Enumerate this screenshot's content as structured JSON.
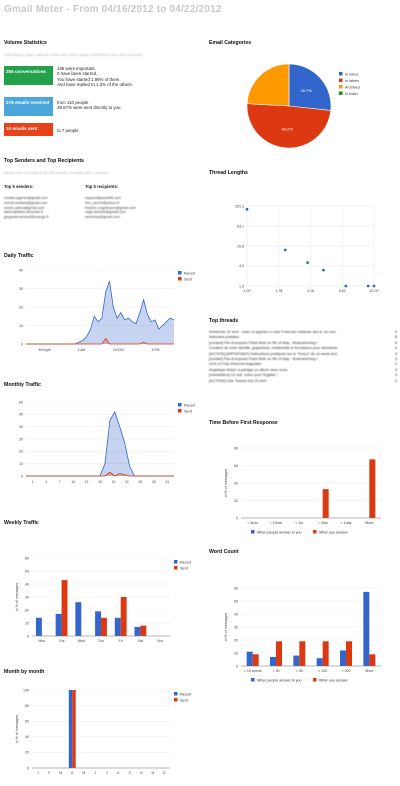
{
  "page_title": "Gmail Meter - From 04/16/2012 to 04/22/2012",
  "volume": {
    "heading": "Volume Statistics",
    "note": "Chat history, spam, calendar invites and other Google notifications have been removed",
    "boxes": [
      {
        "label": "255 conversations",
        "color": "#23a04a",
        "lines": [
          "195 were important.",
          "0 have been starred.",
          "You have started 1.96% of them.",
          "And have replied to 1.2% of the others."
        ]
      },
      {
        "label": "278 emails received",
        "color": "#4aa7dc",
        "lines": [
          "from 110 people",
          "39.57% were sent directly to you."
        ]
      },
      {
        "label": "10 emails sent",
        "color": "#e8421b",
        "lines": [
          "to 7 people"
        ]
      }
    ]
  },
  "senders": {
    "heading": "Top Senders and Top Recipients",
    "note": "Mouse over a contact to see the number of emails sent / received",
    "senders_title": "Top 5 senders:",
    "recipients_title": "Top 5 recipients:",
    "senders_list": [
      "romain.pigenel@gmail.com",
      "mehdi.meliank@gmail.com",
      "elodie.cabrol@gmail.com",
      "lisbon@listes.lemonde.fr",
      "gregoiremarnivel@orange.fr"
    ],
    "recipients_list": [
      "support@pearltrill.com",
      "ben_pecrin@yahoo.fr",
      "frederic.engelmann@gmail.com",
      "regis.laroche@gmail.com",
      "androsse@gmail.com"
    ]
  },
  "categories": {
    "heading": "Email Categories",
    "legend": [
      "In inbox",
      "In labels",
      "Archived",
      "In trash"
    ]
  },
  "thread_lengths": {
    "heading": "Thread Lengths"
  },
  "top_threads": {
    "heading": "Top threads",
    "rows": [
      {
        "subject": "Dimanche 22 avril : votez et appelez a voter Francois Hollande des le 1er tour",
        "count": "9"
      },
      {
        "subject": "Adresses postales",
        "count": "6"
      },
      {
        "subject": "[contact] Pan-European Flash Mob on 9th of May - Brainstorming !",
        "count": "6"
      },
      {
        "subject": "Creation de votre identite, graphisme, multimedia et formations pour debutants",
        "count": "4"
      },
      {
        "subject": "[ACTION] [IMPORTANT] Instructions juridiques sur le \"fresco\" de ce week-end",
        "count": "3"
      },
      {
        "subject": "[contact] Pan-European Flash Mob on 9th of May - Brainstorming !",
        "count": "3"
      },
      {
        "subject": "UVS v2 Fast Ethernet Adaptater",
        "count": "3"
      },
      {
        "subject": "Angelique Meyer a partage un album avec vous.",
        "count": "3"
      },
      {
        "subject": "[newsletters] Ce soir, votez pour l'Egalite !",
        "count": "3"
      },
      {
        "subject": "[ACTION] Liste Tweets dus 20 avril",
        "count": "3"
      }
    ]
  },
  "chart_data": [
    {
      "type": "pie",
      "title": "Email Categories",
      "categories": [
        "In inbox",
        "In labels",
        "Archived",
        "In trash"
      ],
      "values": [
        26.7,
        49.2,
        24.1,
        0
      ],
      "colors": [
        "#3366cc",
        "#dc3912",
        "#ff9900",
        "#109618"
      ],
      "slice_labels": [
        "26.7%",
        "49.2%",
        "",
        ""
      ]
    },
    {
      "type": "scatter",
      "title": "Thread Lengths",
      "x_ticks": [
        "1.00",
        "1.78",
        "3.16",
        "5.62",
        "10.00"
      ],
      "y_ticks": [
        "1.0",
        "4.0",
        "15.8",
        "63.1",
        "251.2"
      ],
      "log_scale": true,
      "points": [
        [
          1,
          200
        ],
        [
          2,
          12
        ],
        [
          3,
          5
        ],
        [
          4,
          3
        ],
        [
          6,
          1
        ],
        [
          9,
          1
        ],
        [
          10,
          1
        ]
      ]
    },
    {
      "type": "area",
      "title": "Daily Traffic",
      "y_ticks": [
        "0",
        "10",
        "20",
        "30",
        "40"
      ],
      "x_labels": [
        "4h/night",
        "4 AM",
        "NOON",
        "4 PM"
      ],
      "series": [
        {
          "name": "Recvd",
          "color": "#3366cc",
          "values": [
            0,
            0,
            0,
            0,
            0,
            0,
            0,
            0,
            0,
            0,
            0,
            0,
            0,
            0,
            1,
            2,
            4,
            8,
            15,
            12,
            14,
            28,
            34,
            20,
            14,
            17,
            13,
            14,
            12,
            11,
            17,
            24,
            16,
            12,
            13,
            8,
            10,
            12,
            14,
            13
          ]
        },
        {
          "name": "Sent",
          "color": "#dc3912",
          "values": [
            0,
            0,
            0,
            0,
            0,
            0,
            0,
            0,
            0,
            0,
            0,
            0,
            0,
            0,
            0,
            0,
            0,
            0,
            0,
            0,
            0,
            3,
            0,
            0,
            0,
            0,
            0,
            0,
            0,
            0,
            0,
            1,
            0,
            0,
            0,
            0,
            0,
            0,
            0,
            0
          ]
        }
      ]
    },
    {
      "type": "area",
      "title": "Monthly Traffic",
      "y_ticks": [
        "0",
        "10",
        "20",
        "30",
        "40",
        "50",
        "60"
      ],
      "x_labels": [
        "1",
        "4",
        "7",
        "10",
        "13",
        "16",
        "19",
        "22",
        "25",
        "28",
        "31"
      ],
      "series": [
        {
          "name": "Recvd",
          "color": "#3366cc",
          "values": [
            0,
            0,
            0,
            0,
            0,
            0,
            0,
            0,
            0,
            0,
            0,
            0,
            0,
            0,
            0,
            0,
            10,
            45,
            52,
            40,
            27,
            8,
            0,
            0,
            0,
            0,
            0,
            0,
            0,
            0,
            0
          ]
        },
        {
          "name": "Sent",
          "color": "#dc3912",
          "values": [
            0,
            0,
            0,
            0,
            0,
            0,
            0,
            0,
            0,
            0,
            0,
            0,
            0,
            0,
            0,
            0,
            0,
            3,
            0,
            2,
            1,
            0,
            0,
            0,
            0,
            0,
            0,
            0,
            0,
            0,
            0
          ]
        }
      ]
    },
    {
      "type": "bar",
      "title": "Weekly Traffic",
      "ylabel": "in % of messages",
      "y_ticks": [
        "0",
        "10",
        "20",
        "30",
        "40",
        "50",
        "60"
      ],
      "categories": [
        "Mon",
        "Tue",
        "Wed",
        "Thu",
        "Fri",
        "Sat",
        "Sun"
      ],
      "series": [
        {
          "name": "Recvd",
          "color": "#3366cc",
          "values": [
            14,
            17,
            26,
            19,
            14,
            7,
            0
          ]
        },
        {
          "name": "Sent",
          "color": "#dc3912",
          "values": [
            0,
            43,
            0,
            14,
            30,
            8,
            0
          ]
        }
      ]
    },
    {
      "type": "bar",
      "title": "Month by month",
      "ylabel": "in % of messages",
      "y_ticks": [
        "0",
        "20",
        "40",
        "60",
        "80",
        "100"
      ],
      "categories": [
        "J",
        "F",
        "M",
        "A",
        "M",
        "J",
        "J",
        "A",
        "S",
        "O",
        "N",
        "D"
      ],
      "series": [
        {
          "name": "Recvd",
          "color": "#3366cc",
          "values": [
            0,
            0,
            0,
            100,
            0,
            0,
            0,
            0,
            0,
            0,
            0,
            0
          ]
        },
        {
          "name": "Sent",
          "color": "#dc3912",
          "values": [
            0,
            0,
            0,
            100,
            0,
            0,
            0,
            0,
            0,
            0,
            0,
            0
          ]
        }
      ]
    },
    {
      "type": "bar",
      "title": "Time Before First Response",
      "ylabel": "in % of messages",
      "y_ticks": [
        "0",
        "20",
        "40",
        "60",
        "80"
      ],
      "categories": [
        "< 5min",
        "< 10min",
        "< 1hr",
        "< 4hrs",
        "< 1day",
        "More"
      ],
      "series": [
        {
          "name": "When people answer to you",
          "color": "#3366cc",
          "values": [
            0,
            0,
            0,
            0,
            0,
            0
          ]
        },
        {
          "name": "When you answer",
          "color": "#dc3912",
          "values": [
            0,
            0,
            0,
            33,
            0,
            67
          ]
        }
      ]
    },
    {
      "type": "bar",
      "title": "Word Count",
      "ylabel": "in % of messages",
      "y_ticks": [
        "0",
        "10",
        "20",
        "30",
        "40",
        "50",
        "60"
      ],
      "categories": [
        "< 10 words",
        "< 30",
        "< 50",
        "< 100",
        "< 200",
        "More"
      ],
      "series": [
        {
          "name": "When people answer to you",
          "color": "#3366cc",
          "values": [
            11,
            7,
            8,
            6,
            12,
            57
          ]
        },
        {
          "name": "When you answer",
          "color": "#dc3912",
          "values": [
            9,
            19,
            19,
            19,
            19,
            9
          ]
        }
      ]
    }
  ]
}
